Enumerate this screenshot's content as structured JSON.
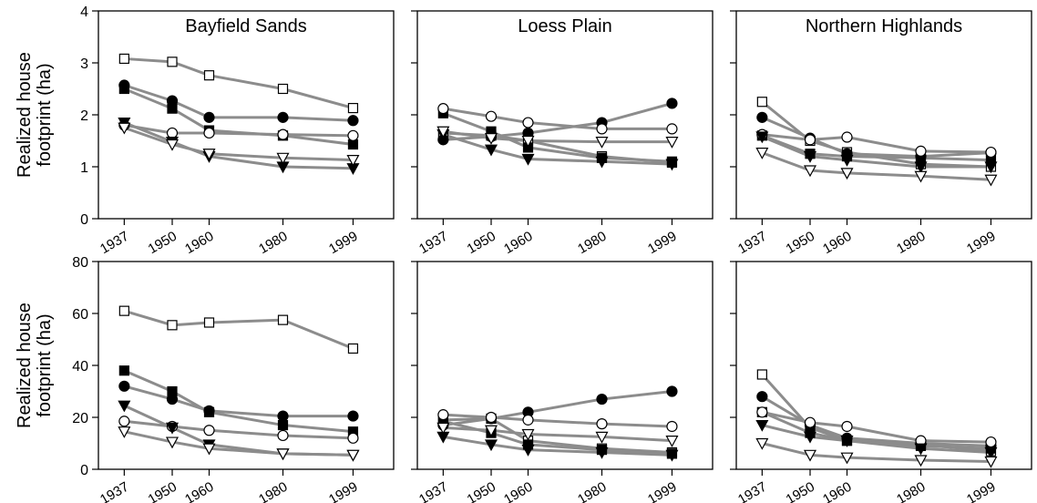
{
  "chart_data": [
    {
      "type": "line",
      "title": "Bayfield Sands",
      "ylabel": "Realized house footprint (ha)",
      "x": [
        1937,
        1950,
        1960,
        1980,
        1999
      ],
      "xticks": [
        1937,
        1950,
        1960,
        1980,
        1999
      ],
      "xlim": [
        1930,
        2010
      ],
      "ylim": [
        0,
        4
      ],
      "yticks": [
        0,
        1,
        2,
        3,
        4
      ],
      "series": [
        {
          "color": "#8c8c8c",
          "marker": "square",
          "marker_fill": "#ffffff",
          "values": [
            3.08,
            3.02,
            2.76,
            2.5,
            2.13
          ]
        },
        {
          "color": "#8c8c8c",
          "marker": "circle",
          "marker_fill": "#000000",
          "values": [
            2.57,
            2.27,
            1.95,
            1.95,
            1.89
          ]
        },
        {
          "color": "#8c8c8c",
          "marker": "square",
          "marker_fill": "#000000",
          "values": [
            2.5,
            2.12,
            1.7,
            1.6,
            1.43
          ]
        },
        {
          "color": "#8c8c8c",
          "marker": "circle",
          "marker_fill": "#ffffff",
          "values": [
            1.8,
            1.65,
            1.65,
            1.62,
            1.6
          ]
        },
        {
          "color": "#8c8c8c",
          "marker": "triangle-down",
          "marker_fill": "#000000",
          "values": [
            1.85,
            1.48,
            1.2,
            1.0,
            0.97
          ]
        },
        {
          "color": "#8c8c8c",
          "marker": "triangle-down",
          "marker_fill": "#ffffff",
          "values": [
            1.75,
            1.43,
            1.25,
            1.17,
            1.13
          ]
        }
      ]
    },
    {
      "type": "line",
      "title": "Loess Plain",
      "x": [
        1937,
        1950,
        1960,
        1980,
        1999
      ],
      "xticks": [
        1937,
        1950,
        1960,
        1980,
        1999
      ],
      "xlim": [
        1930,
        2010
      ],
      "series": [
        {
          "color": "#8c8c8c",
          "marker": "square",
          "marker_fill": "#ffffff",
          "values": [
            1.65,
            1.6,
            1.5,
            1.2,
            1.08
          ]
        },
        {
          "color": "#8c8c8c",
          "marker": "circle",
          "marker_fill": "#000000",
          "values": [
            1.52,
            1.58,
            1.65,
            1.85,
            2.22
          ]
        },
        {
          "color": "#8c8c8c",
          "marker": "square",
          "marker_fill": "#000000",
          "values": [
            2.03,
            1.68,
            1.37,
            1.17,
            1.1
          ]
        },
        {
          "color": "#8c8c8c",
          "marker": "circle",
          "marker_fill": "#ffffff",
          "values": [
            2.12,
            1.97,
            1.85,
            1.73,
            1.73
          ]
        },
        {
          "color": "#8c8c8c",
          "marker": "triangle-down",
          "marker_fill": "#000000",
          "values": [
            1.62,
            1.33,
            1.15,
            1.1,
            1.05
          ]
        },
        {
          "color": "#8c8c8c",
          "marker": "triangle-down",
          "marker_fill": "#ffffff",
          "values": [
            1.68,
            1.55,
            1.5,
            1.48,
            1.48
          ]
        }
      ]
    },
    {
      "type": "line",
      "title": "Northern Highlands",
      "x": [
        1937,
        1950,
        1960,
        1980,
        1999
      ],
      "xticks": [
        1937,
        1950,
        1960,
        1980,
        1999
      ],
      "xlim": [
        1930,
        2010
      ],
      "series": [
        {
          "color": "#8c8c8c",
          "marker": "square",
          "marker_fill": "#ffffff",
          "values": [
            2.25,
            1.5,
            1.28,
            1.05,
            1.0
          ]
        },
        {
          "color": "#8c8c8c",
          "marker": "circle",
          "marker_fill": "#000000",
          "values": [
            1.95,
            1.55,
            1.25,
            1.2,
            1.27
          ]
        },
        {
          "color": "#8c8c8c",
          "marker": "square",
          "marker_fill": "#000000",
          "values": [
            1.6,
            1.25,
            1.2,
            1.17,
            1.13
          ]
        },
        {
          "color": "#8c8c8c",
          "marker": "circle",
          "marker_fill": "#ffffff",
          "values": [
            1.62,
            1.52,
            1.57,
            1.3,
            1.28
          ]
        },
        {
          "color": "#8c8c8c",
          "marker": "triangle-down",
          "marker_fill": "#000000",
          "values": [
            1.58,
            1.2,
            1.13,
            1.0,
            1.0
          ]
        },
        {
          "color": "#8c8c8c",
          "marker": "triangle-down",
          "marker_fill": "#ffffff",
          "values": [
            1.27,
            0.93,
            0.88,
            0.82,
            0.75
          ]
        }
      ]
    },
    {
      "type": "line",
      "ylabel": "Realized house footprint (ha)",
      "x": [
        1937,
        1950,
        1960,
        1980,
        1999
      ],
      "xticks": [
        1937,
        1950,
        1960,
        1980,
        1999
      ],
      "xlim": [
        1930,
        2010
      ],
      "ylim": [
        0,
        80
      ],
      "yticks": [
        0,
        20,
        40,
        60,
        80
      ],
      "series": [
        {
          "color": "#8c8c8c",
          "marker": "square",
          "marker_fill": "#ffffff",
          "values": [
            61,
            55.5,
            56.5,
            57.5,
            46.5
          ]
        },
        {
          "color": "#8c8c8c",
          "marker": "circle",
          "marker_fill": "#000000",
          "values": [
            32,
            27,
            22.5,
            20.5,
            20.5
          ]
        },
        {
          "color": "#8c8c8c",
          "marker": "square",
          "marker_fill": "#000000",
          "values": [
            38,
            30,
            22,
            17,
            14.5
          ]
        },
        {
          "color": "#8c8c8c",
          "marker": "circle",
          "marker_fill": "#ffffff",
          "values": [
            18.5,
            16.5,
            15,
            13,
            12
          ]
        },
        {
          "color": "#8c8c8c",
          "marker": "triangle-down",
          "marker_fill": "#000000",
          "values": [
            24.5,
            16,
            9.5,
            6,
            5.5
          ]
        },
        {
          "color": "#8c8c8c",
          "marker": "triangle-down",
          "marker_fill": "#ffffff",
          "values": [
            14.5,
            10.5,
            8,
            6,
            5.5
          ]
        }
      ]
    },
    {
      "type": "line",
      "x": [
        1937,
        1950,
        1960,
        1980,
        1999
      ],
      "xticks": [
        1937,
        1950,
        1960,
        1980,
        1999
      ],
      "xlim": [
        1930,
        2010
      ],
      "series": [
        {
          "color": "#8c8c8c",
          "marker": "square",
          "marker_fill": "#ffffff",
          "values": [
            19,
            19.5,
            11,
            8,
            6.5
          ]
        },
        {
          "color": "#8c8c8c",
          "marker": "circle",
          "marker_fill": "#000000",
          "values": [
            17,
            19.5,
            22,
            27,
            30
          ]
        },
        {
          "color": "#8c8c8c",
          "marker": "square",
          "marker_fill": "#000000",
          "values": [
            18.5,
            14,
            9.5,
            7.5,
            6
          ]
        },
        {
          "color": "#8c8c8c",
          "marker": "circle",
          "marker_fill": "#ffffff",
          "values": [
            21,
            20,
            19,
            17.5,
            16.5
          ]
        },
        {
          "color": "#8c8c8c",
          "marker": "triangle-down",
          "marker_fill": "#000000",
          "values": [
            12.5,
            9.5,
            7.5,
            6.5,
            5.5
          ]
        },
        {
          "color": "#8c8c8c",
          "marker": "triangle-down",
          "marker_fill": "#ffffff",
          "values": [
            16,
            15,
            13.5,
            12.5,
            11
          ]
        }
      ]
    },
    {
      "type": "line",
      "x": [
        1937,
        1950,
        1960,
        1980,
        1999
      ],
      "xticks": [
        1937,
        1950,
        1960,
        1980,
        1999
      ],
      "xlim": [
        1930,
        2010
      ],
      "series": [
        {
          "color": "#8c8c8c",
          "marker": "square",
          "marker_fill": "#ffffff",
          "values": [
            36.5,
            16,
            11,
            9.5,
            7
          ]
        },
        {
          "color": "#8c8c8c",
          "marker": "circle",
          "marker_fill": "#000000",
          "values": [
            28,
            17,
            12,
            10,
            9
          ]
        },
        {
          "color": "#8c8c8c",
          "marker": "square",
          "marker_fill": "#000000",
          "values": [
            22,
            14,
            11,
            9,
            8
          ]
        },
        {
          "color": "#8c8c8c",
          "marker": "circle",
          "marker_fill": "#ffffff",
          "values": [
            22,
            18,
            16.5,
            11,
            10.5
          ]
        },
        {
          "color": "#8c8c8c",
          "marker": "triangle-down",
          "marker_fill": "#000000",
          "values": [
            17,
            12.5,
            11,
            8,
            6.5
          ]
        },
        {
          "color": "#8c8c8c",
          "marker": "triangle-down",
          "marker_fill": "#ffffff",
          "values": [
            10,
            5.5,
            4.5,
            3.5,
            3
          ]
        }
      ]
    }
  ]
}
